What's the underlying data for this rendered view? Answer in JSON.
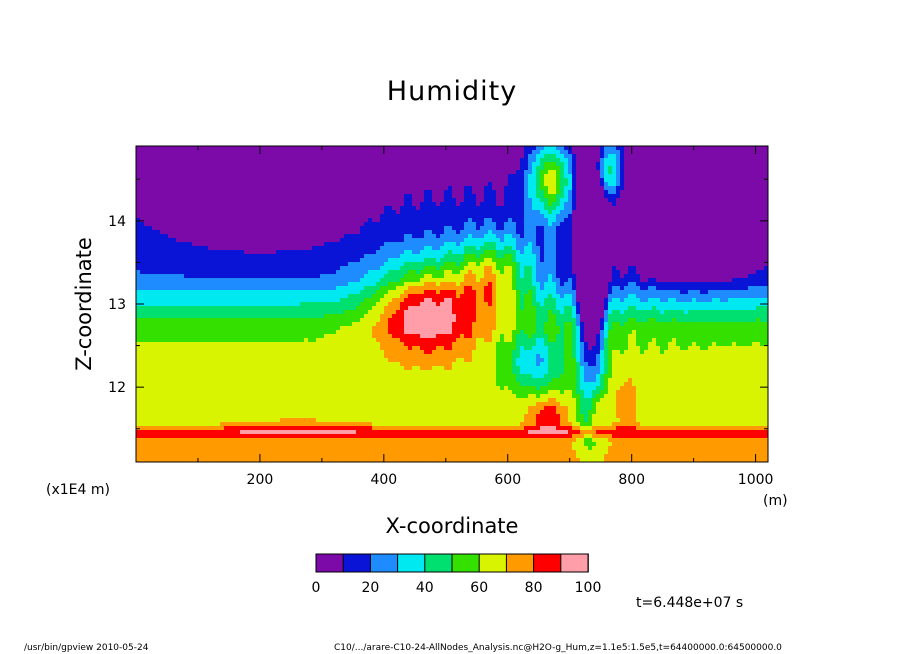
{
  "chart_data": {
    "type": "heatmap",
    "title": "Humidity",
    "xlabel": "X-coordinate",
    "ylabel": "Z-coordinate",
    "x_units": "(m)",
    "y_units": "(x1E4 m)",
    "xlim": [
      0,
      1020
    ],
    "ylim": [
      11.1,
      14.9
    ],
    "x_ticks": [
      200,
      400,
      600,
      800,
      1000
    ],
    "y_ticks": [
      12,
      13,
      14
    ],
    "colorbar": {
      "levels": [
        0,
        10,
        20,
        30,
        40,
        50,
        60,
        70,
        80,
        90,
        100
      ],
      "tick_labels": [
        "0",
        "20",
        "40",
        "60",
        "80",
        "100"
      ],
      "colors": [
        "#7b0aa8",
        "#0a14d6",
        "#1e8cff",
        "#00e8f0",
        "#00e070",
        "#33e000",
        "#d8f400",
        "#ff9a00",
        "#ff0000",
        "#ff9ea8"
      ]
    },
    "time_label": "t=6.448e+07 s"
  },
  "footer": {
    "left": "/usr/bin/gpview  2010-05-24",
    "right": "C10/.../arare-C10-24-AllNodes_Analysis.nc@H2O-g_Hum,z=1.1e5:1.5e5,t=64400000.0:64500000.0"
  }
}
